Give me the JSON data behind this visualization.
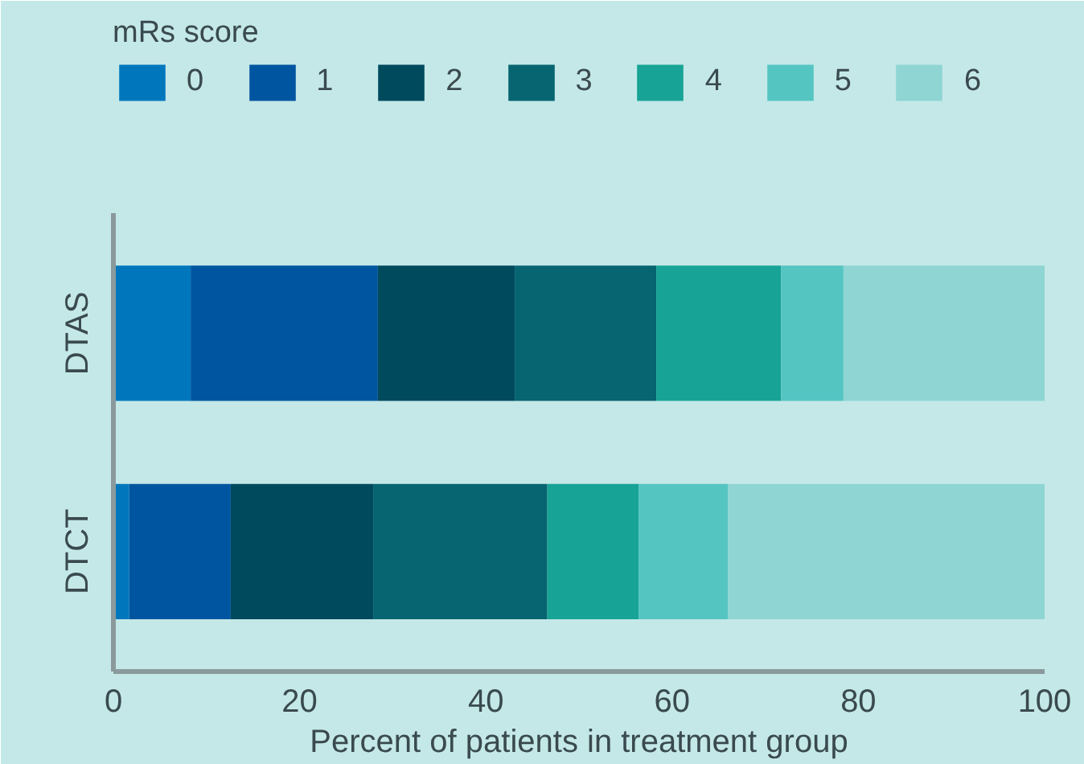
{
  "chart_data": {
    "type": "bar",
    "orientation": "horizontal",
    "stacked": true,
    "xlabel": "Percent of patients in treatment group",
    "legend_title": "mRs score",
    "legend": "top",
    "grid": false,
    "categories": [
      "DTAS",
      "DTCT"
    ],
    "xlim": [
      0,
      100
    ],
    "xticks": [
      0,
      20,
      40,
      60,
      80,
      100
    ],
    "series": [
      {
        "name": "0",
        "color": "#0077bd",
        "values": [
          8.3,
          1.7
        ]
      },
      {
        "name": "1",
        "color": "#0055a0",
        "values": [
          20.1,
          10.9
        ]
      },
      {
        "name": "2",
        "color": "#004a5e",
        "values": [
          14.7,
          15.3
        ]
      },
      {
        "name": "3",
        "color": "#066570",
        "values": [
          15.2,
          18.7
        ]
      },
      {
        "name": "4",
        "color": "#17a395",
        "values": [
          13.4,
          9.8
        ]
      },
      {
        "name": "5",
        "color": "#55c5c2",
        "values": [
          6.7,
          9.6
        ]
      },
      {
        "name": "6",
        "color": "#8fd5d3",
        "values": [
          21.6,
          34.0
        ]
      }
    ]
  }
}
